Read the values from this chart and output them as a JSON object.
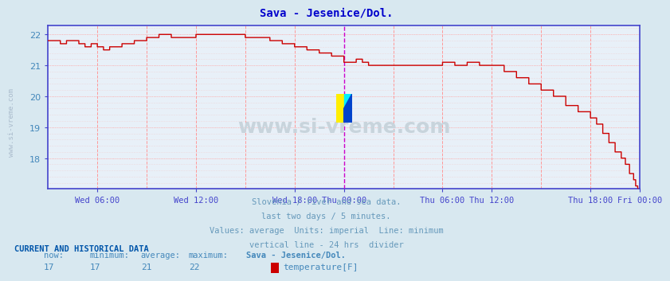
{
  "title": "Sava - Jesenice/Dol.",
  "title_color": "#0000cc",
  "bg_color": "#d8e8f0",
  "plot_bg_color": "#e8f0f8",
  "line_color": "#cc0000",
  "vline_24hr_color": "#cc00cc",
  "vline_6hr_color": "#ff9999",
  "ylim_min": 17.0,
  "ylim_max": 22.3,
  "yticks": [
    18,
    19,
    20,
    21,
    22
  ],
  "n_points": 576,
  "divider_x": 288,
  "xtick_positions": [
    48,
    144,
    240,
    288,
    384,
    432,
    528,
    576
  ],
  "xtick_labels": [
    "Wed 06:00",
    "Wed 12:00",
    "Wed 18:00",
    "Thu 00:00",
    "Thu 06:00",
    "Thu 12:00",
    "Thu 18:00",
    "Fri 00:00"
  ],
  "footnote_lines": [
    "Slovenia / river and sea data.",
    "last two days / 5 minutes.",
    "Values: average  Units: imperial  Line: minimum",
    "vertical line - 24 hrs  divider"
  ],
  "footnote_color": "#6699bb",
  "current_data_label": "CURRENT AND HISTORICAL DATA",
  "stats_labels": [
    "now:",
    "minimum:",
    "average:",
    "maximum:"
  ],
  "stats_values": [
    "17",
    "17",
    "21",
    "22"
  ],
  "station_name": "Sava - Jesenice/Dol.",
  "measure_label": "temperature[F]",
  "legend_color": "#cc0000",
  "watermark_text": "www.si-vreme.com",
  "watermark_color": "#c8d4dc",
  "ylabel_text": "www.si-vreme.com",
  "ylabel_color": "#aabbcc",
  "spine_color": "#4444cc",
  "tick_label_color": "#4488bb"
}
